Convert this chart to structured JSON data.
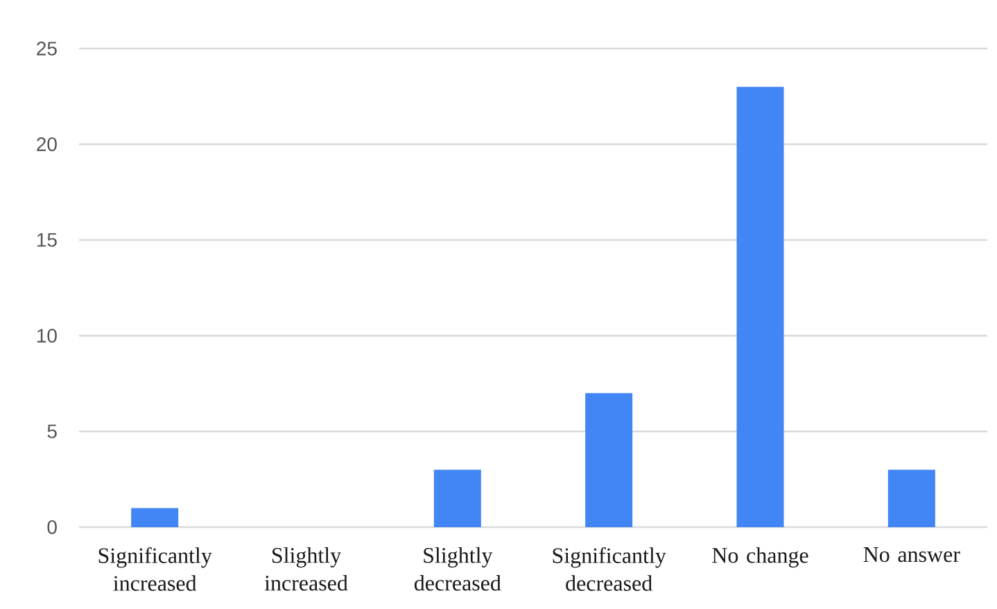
{
  "chart_data": {
    "type": "bar",
    "categories": [
      "Significantly increased",
      "Slightly increased",
      "Slightly decreased",
      "Significantly decreased",
      "No change",
      "No answer"
    ],
    "values": [
      1,
      0,
      3,
      7,
      23,
      3
    ],
    "color": "#4285f4",
    "ylim": [
      0,
      25
    ],
    "yticks": [
      0,
      5,
      10,
      15,
      20,
      25
    ],
    "grid": "y"
  }
}
